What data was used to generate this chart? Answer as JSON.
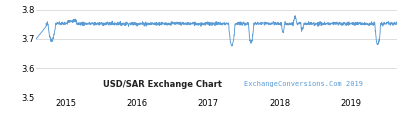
{
  "title": "USD/SAR Exchange Chart",
  "watermark": "ExchangeConversions.Com 2019",
  "line_color": "#5b9bd5",
  "bg_color": "#ffffff",
  "grid_color": "#d0d0d0",
  "ylim": [
    3.5,
    3.82
  ],
  "yticks": [
    3.5,
    3.6,
    3.7,
    3.8
  ],
  "xlabel_years": [
    2015,
    2016,
    2017,
    2018,
    2019
  ],
  "xlim": [
    2014.58,
    2019.65
  ],
  "base_value": 3.752,
  "title_fontsize": 6.0,
  "watermark_fontsize": 5.0,
  "tick_fontsize": 6.0
}
